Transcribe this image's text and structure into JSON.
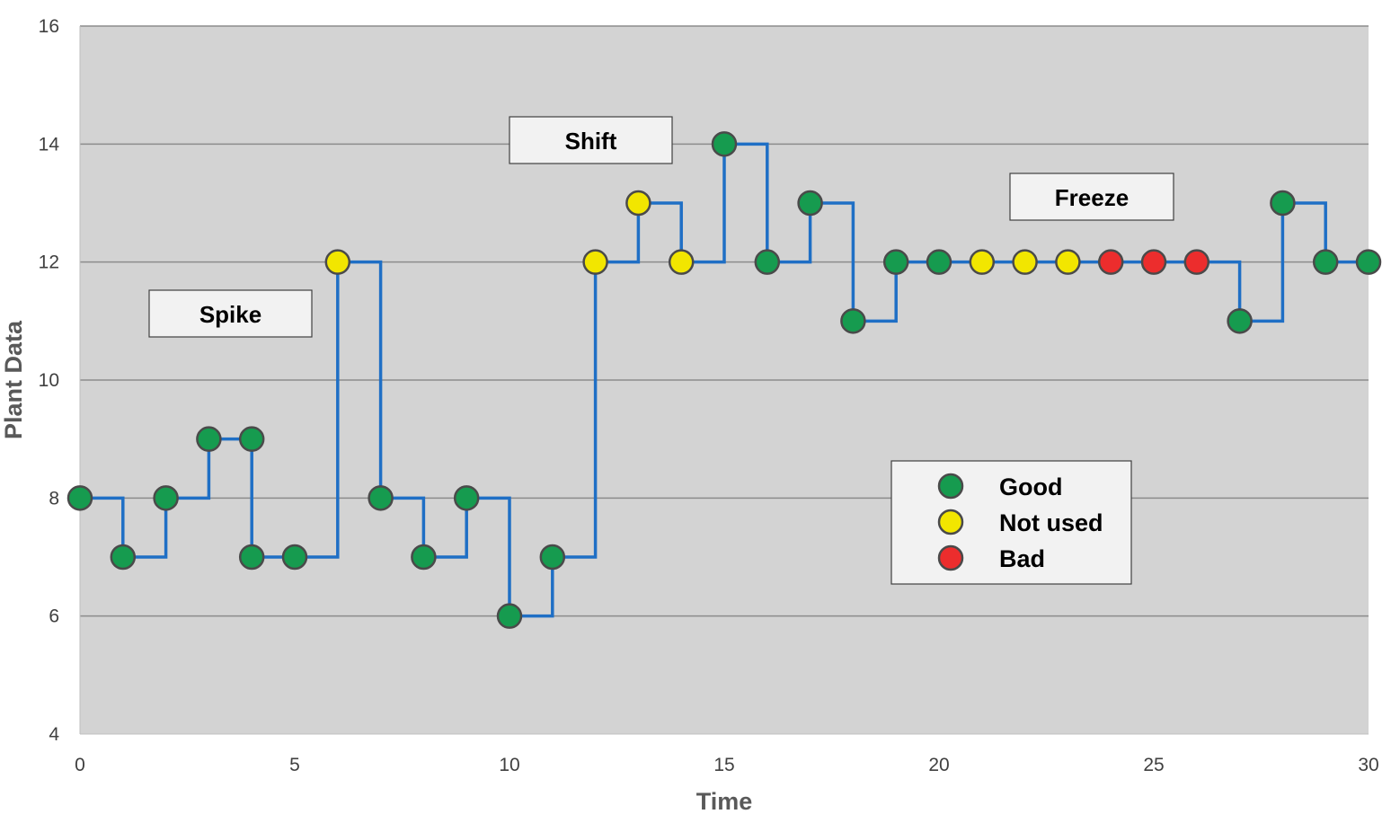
{
  "chart_data": {
    "type": "line",
    "step": "post",
    "title": "",
    "xlabel": "Time",
    "ylabel": "Plant Data",
    "xlim": [
      0,
      30
    ],
    "ylim": [
      4,
      16
    ],
    "xticks": [
      0,
      5,
      10,
      15,
      20,
      25,
      30
    ],
    "yticks": [
      4,
      6,
      8,
      10,
      12,
      14,
      16
    ],
    "grid": "horizontal",
    "series": [
      {
        "name": "Plant Data",
        "color": "#1f6fc5",
        "x": [
          0,
          1,
          2,
          3,
          4,
          5,
          6,
          7,
          8,
          9,
          10,
          11,
          12,
          13,
          14,
          15,
          16,
          17,
          18,
          19,
          20,
          21,
          22,
          23,
          24,
          25,
          26,
          27,
          28,
          29,
          30
        ],
        "y": [
          8,
          7,
          8,
          9,
          7,
          7,
          12,
          8,
          7,
          8,
          6,
          7,
          12,
          13,
          12,
          14,
          12,
          13,
          11,
          12,
          12,
          12,
          12,
          12,
          12,
          12,
          12,
          11,
          13,
          12,
          12
        ],
        "status": [
          "good",
          "good",
          "good",
          "good",
          "good",
          "good",
          "not_used",
          "good",
          "good",
          "good",
          "good",
          "good",
          "not_used",
          "not_used",
          "not_used",
          "good",
          "good",
          "good",
          "good",
          "good",
          "good",
          "not_used",
          "not_used",
          "not_used",
          "bad",
          "bad",
          "bad",
          "good",
          "good",
          "good",
          "good"
        ],
        "extra_points": [
          {
            "x": 4,
            "y": 9,
            "status": "good"
          }
        ]
      }
    ],
    "annotations": [
      {
        "text": "Spike"
      },
      {
        "text": "Shift"
      },
      {
        "text": "Freeze"
      }
    ],
    "legend": {
      "position": "lower-right",
      "entries": [
        {
          "label": "Good",
          "status": "good",
          "color": "#169b4f"
        },
        {
          "label": "Not used",
          "status": "not_used",
          "color": "#f2e600"
        },
        {
          "label": "Bad",
          "status": "bad",
          "color": "#ec2d2d"
        }
      ]
    },
    "colors": {
      "plot_bg": "#d3d3d3",
      "grid": "#8c8c8c",
      "line": "#1f6fc5",
      "marker_edge": "#4a4a4a"
    }
  }
}
